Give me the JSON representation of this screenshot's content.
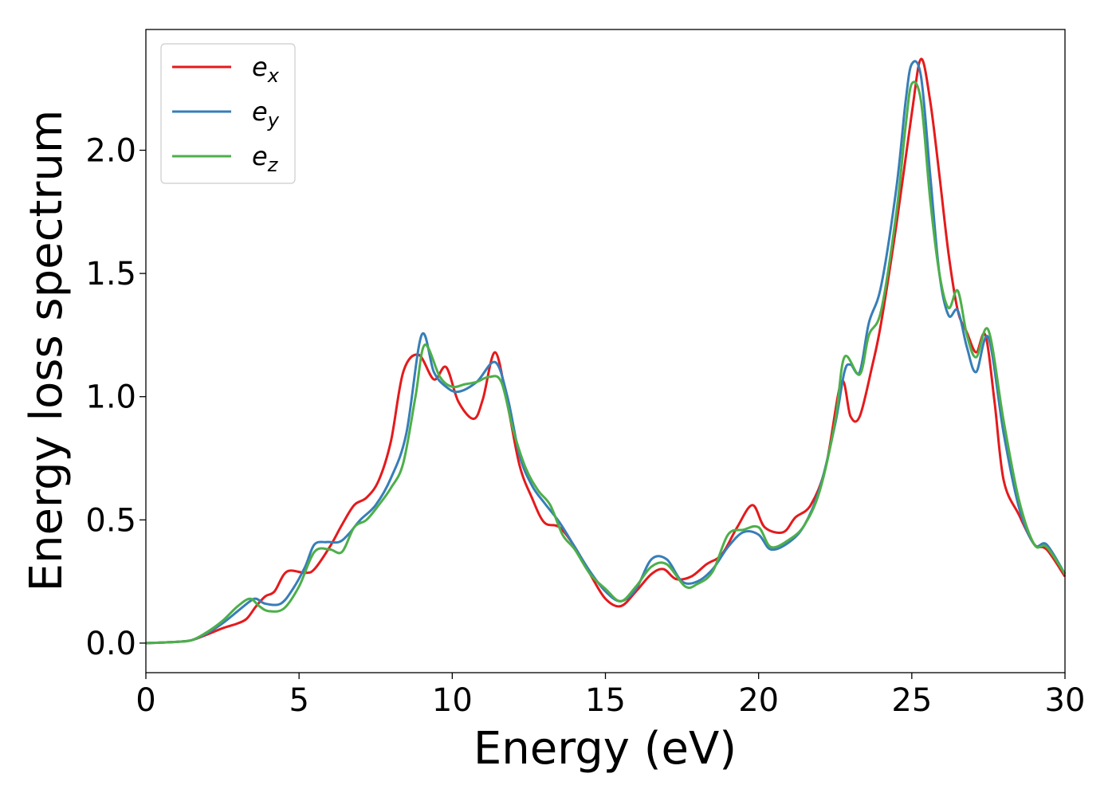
{
  "chart_data": {
    "type": "line",
    "title": "",
    "xlabel": "Energy (eV)",
    "ylabel": "Energy loss spectrum",
    "xlim": [
      0,
      30
    ],
    "ylim": [
      -0.12,
      2.49
    ],
    "xticks": [
      0,
      5,
      10,
      15,
      20,
      25,
      30
    ],
    "xtick_labels": [
      "0",
      "5",
      "10",
      "15",
      "20",
      "25",
      "30"
    ],
    "yticks": [
      0.0,
      0.5,
      1.0,
      1.5,
      2.0
    ],
    "ytick_labels": [
      "0.0",
      "0.5",
      "1.0",
      "1.5",
      "2.0"
    ],
    "grid": false,
    "legend_position": "top-left",
    "series": [
      {
        "name": "e_x",
        "label_base": "e",
        "label_sub": "x",
        "color": "#e41a1c",
        "points": [
          [
            0,
            0
          ],
          [
            1,
            0.005
          ],
          [
            1.5,
            0.012
          ],
          [
            2,
            0.035
          ],
          [
            2.5,
            0.06
          ],
          [
            3,
            0.08
          ],
          [
            3.3,
            0.1
          ],
          [
            3.6,
            0.15
          ],
          [
            3.9,
            0.19
          ],
          [
            4.2,
            0.21
          ],
          [
            4.6,
            0.29
          ],
          [
            5.2,
            0.285
          ],
          [
            5.5,
            0.3
          ],
          [
            6,
            0.39
          ],
          [
            6.4,
            0.48
          ],
          [
            6.8,
            0.56
          ],
          [
            7.2,
            0.59
          ],
          [
            7.6,
            0.66
          ],
          [
            8,
            0.82
          ],
          [
            8.4,
            1.1
          ],
          [
            8.9,
            1.17
          ],
          [
            9.4,
            1.07
          ],
          [
            9.8,
            1.12
          ],
          [
            10.2,
            0.98
          ],
          [
            10.7,
            0.91
          ],
          [
            11,
            0.99
          ],
          [
            11.4,
            1.18
          ],
          [
            11.8,
            0.97
          ],
          [
            12.2,
            0.72
          ],
          [
            12.6,
            0.59
          ],
          [
            13,
            0.49
          ],
          [
            13.5,
            0.47
          ],
          [
            14,
            0.39
          ],
          [
            14.5,
            0.28
          ],
          [
            15,
            0.18
          ],
          [
            15.5,
            0.15
          ],
          [
            16,
            0.21
          ],
          [
            16.5,
            0.28
          ],
          [
            16.9,
            0.3
          ],
          [
            17.3,
            0.26
          ],
          [
            17.8,
            0.27
          ],
          [
            18.3,
            0.32
          ],
          [
            18.8,
            0.36
          ],
          [
            19.3,
            0.47
          ],
          [
            19.8,
            0.56
          ],
          [
            20.2,
            0.47
          ],
          [
            20.8,
            0.45
          ],
          [
            21.2,
            0.51
          ],
          [
            21.7,
            0.56
          ],
          [
            22.2,
            0.72
          ],
          [
            22.7,
            1.06
          ],
          [
            23,
            0.92
          ],
          [
            23.3,
            0.92
          ],
          [
            23.7,
            1.12
          ],
          [
            24,
            1.3
          ],
          [
            24.5,
            1.7
          ],
          [
            25,
            2.15
          ],
          [
            25.3,
            2.37
          ],
          [
            25.6,
            2.2
          ],
          [
            25.9,
            1.9
          ],
          [
            26.2,
            1.58
          ],
          [
            26.5,
            1.35
          ],
          [
            26.8,
            1.26
          ],
          [
            27.1,
            1.18
          ],
          [
            27.4,
            1.25
          ],
          [
            27.7,
            0.98
          ],
          [
            28,
            0.66
          ],
          [
            28.5,
            0.52
          ],
          [
            29,
            0.4
          ],
          [
            29.4,
            0.38
          ],
          [
            30,
            0.27
          ]
        ]
      },
      {
        "name": "e_y",
        "label_base": "e",
        "label_sub": "y",
        "color": "#377eb8",
        "points": [
          [
            0,
            0
          ],
          [
            1,
            0.005
          ],
          [
            1.5,
            0.012
          ],
          [
            2,
            0.04
          ],
          [
            2.5,
            0.08
          ],
          [
            3,
            0.13
          ],
          [
            3.4,
            0.17
          ],
          [
            3.6,
            0.18
          ],
          [
            3.9,
            0.16
          ],
          [
            4.4,
            0.16
          ],
          [
            4.8,
            0.22
          ],
          [
            5.2,
            0.31
          ],
          [
            5.5,
            0.4
          ],
          [
            5.9,
            0.41
          ],
          [
            6.3,
            0.41
          ],
          [
            6.6,
            0.44
          ],
          [
            7,
            0.5
          ],
          [
            7.5,
            0.56
          ],
          [
            8,
            0.67
          ],
          [
            8.5,
            0.85
          ],
          [
            9,
            1.25
          ],
          [
            9.4,
            1.1
          ],
          [
            9.8,
            1.04
          ],
          [
            10.2,
            1.02
          ],
          [
            10.8,
            1.06
          ],
          [
            11.4,
            1.14
          ],
          [
            11.8,
            1.0
          ],
          [
            12.2,
            0.76
          ],
          [
            12.6,
            0.64
          ],
          [
            13,
            0.57
          ],
          [
            13.5,
            0.49
          ],
          [
            14,
            0.39
          ],
          [
            14.5,
            0.29
          ],
          [
            15,
            0.21
          ],
          [
            15.5,
            0.17
          ],
          [
            16,
            0.22
          ],
          [
            16.5,
            0.34
          ],
          [
            17,
            0.34
          ],
          [
            17.5,
            0.25
          ],
          [
            18,
            0.25
          ],
          [
            18.5,
            0.3
          ],
          [
            19,
            0.39
          ],
          [
            19.5,
            0.45
          ],
          [
            20,
            0.44
          ],
          [
            20.4,
            0.38
          ],
          [
            21,
            0.41
          ],
          [
            21.5,
            0.48
          ],
          [
            22,
            0.63
          ],
          [
            22.5,
            0.89
          ],
          [
            22.8,
            1.1
          ],
          [
            23,
            1.13
          ],
          [
            23.3,
            1.1
          ],
          [
            23.6,
            1.3
          ],
          [
            24,
            1.45
          ],
          [
            24.5,
            1.85
          ],
          [
            24.8,
            2.2
          ],
          [
            25,
            2.35
          ],
          [
            25.3,
            2.3
          ],
          [
            25.6,
            1.9
          ],
          [
            25.9,
            1.5
          ],
          [
            26.2,
            1.33
          ],
          [
            26.5,
            1.35
          ],
          [
            26.8,
            1.2
          ],
          [
            27.1,
            1.1
          ],
          [
            27.5,
            1.24
          ],
          [
            28,
            0.85
          ],
          [
            28.5,
            0.55
          ],
          [
            29,
            0.4
          ],
          [
            29.4,
            0.4
          ],
          [
            30,
            0.28
          ]
        ]
      },
      {
        "name": "e_z",
        "label_base": "e",
        "label_sub": "z",
        "color": "#4daf4a",
        "points": [
          [
            0,
            0
          ],
          [
            1,
            0.005
          ],
          [
            1.5,
            0.012
          ],
          [
            2,
            0.045
          ],
          [
            2.5,
            0.09
          ],
          [
            3,
            0.15
          ],
          [
            3.4,
            0.18
          ],
          [
            3.7,
            0.15
          ],
          [
            4,
            0.13
          ],
          [
            4.5,
            0.14
          ],
          [
            5,
            0.23
          ],
          [
            5.5,
            0.37
          ],
          [
            6,
            0.38
          ],
          [
            6.4,
            0.37
          ],
          [
            6.8,
            0.47
          ],
          [
            7.2,
            0.5
          ],
          [
            7.6,
            0.56
          ],
          [
            8,
            0.63
          ],
          [
            8.4,
            0.73
          ],
          [
            8.8,
            1.0
          ],
          [
            9.1,
            1.21
          ],
          [
            9.6,
            1.08
          ],
          [
            10,
            1.04
          ],
          [
            10.4,
            1.05
          ],
          [
            10.8,
            1.06
          ],
          [
            11.2,
            1.08
          ],
          [
            11.6,
            1.06
          ],
          [
            12,
            0.86
          ],
          [
            12.4,
            0.71
          ],
          [
            12.8,
            0.62
          ],
          [
            13.2,
            0.56
          ],
          [
            13.6,
            0.44
          ],
          [
            14,
            0.38
          ],
          [
            14.5,
            0.28
          ],
          [
            15,
            0.22
          ],
          [
            15.5,
            0.17
          ],
          [
            16,
            0.23
          ],
          [
            16.5,
            0.31
          ],
          [
            17,
            0.32
          ],
          [
            17.6,
            0.23
          ],
          [
            18,
            0.24
          ],
          [
            18.5,
            0.29
          ],
          [
            19,
            0.44
          ],
          [
            19.5,
            0.46
          ],
          [
            20,
            0.47
          ],
          [
            20.4,
            0.39
          ],
          [
            21,
            0.42
          ],
          [
            21.5,
            0.48
          ],
          [
            22,
            0.62
          ],
          [
            22.5,
            0.9
          ],
          [
            22.8,
            1.16
          ],
          [
            23.3,
            1.09
          ],
          [
            23.6,
            1.25
          ],
          [
            24,
            1.35
          ],
          [
            24.5,
            1.75
          ],
          [
            24.8,
            2.1
          ],
          [
            25,
            2.27
          ],
          [
            25.3,
            2.2
          ],
          [
            25.6,
            1.8
          ],
          [
            25.9,
            1.5
          ],
          [
            26.2,
            1.36
          ],
          [
            26.5,
            1.43
          ],
          [
            26.8,
            1.25
          ],
          [
            27.1,
            1.16
          ],
          [
            27.5,
            1.27
          ],
          [
            28,
            0.9
          ],
          [
            28.5,
            0.58
          ],
          [
            29,
            0.4
          ],
          [
            29.4,
            0.39
          ],
          [
            30,
            0.28
          ]
        ]
      }
    ]
  }
}
